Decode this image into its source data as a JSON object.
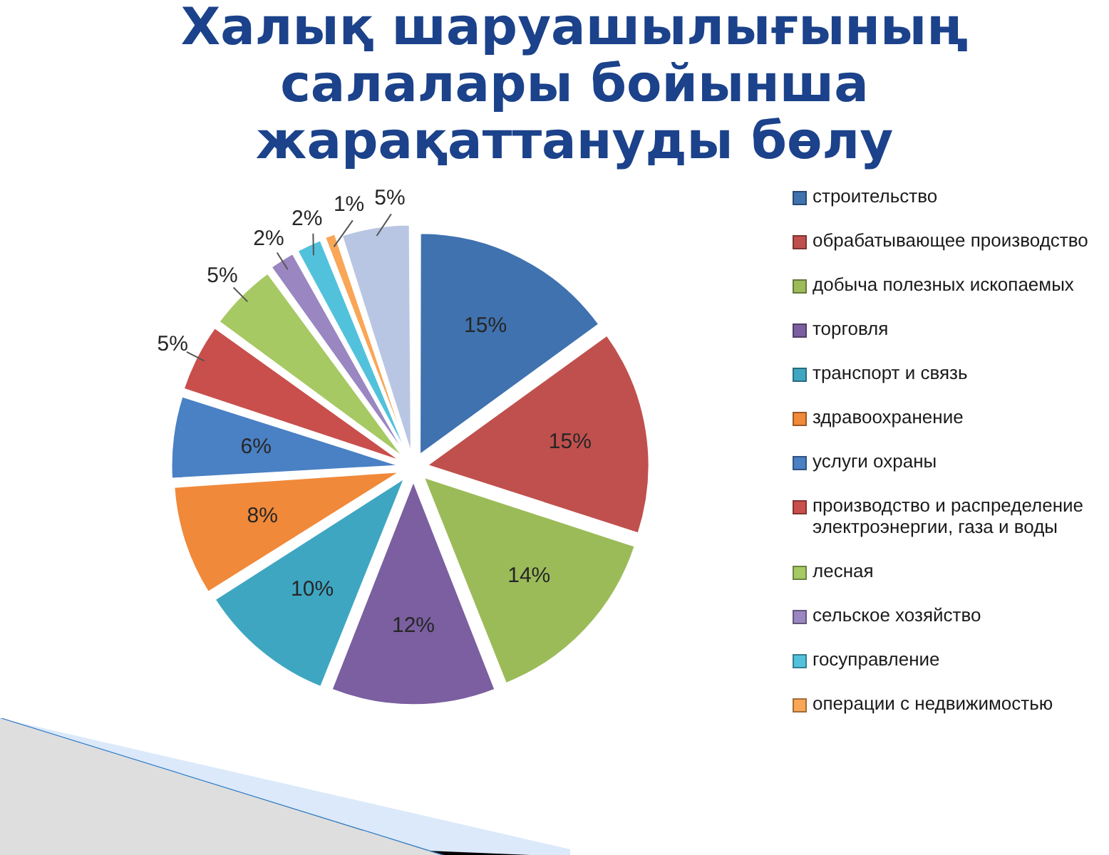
{
  "chart_data": {
    "type": "pie",
    "title": "Халық шаруашылығының салалары бойынша жарақаттануды бөлу",
    "categories": [
      "строительство",
      "обрабатывающее производство",
      "добыча полезных ископаемых",
      "торговля",
      "транспорт и связь",
      "здравоохранение",
      "услуги охраны",
      "производство и распределение электроэнергии, газа и воды",
      "лесная",
      "сельское хозяйство",
      "госуправление",
      "операции с недвижимостью",
      null
    ],
    "values": [
      15,
      15,
      14,
      12,
      10,
      8,
      6,
      5,
      5,
      2,
      2,
      1,
      5
    ],
    "colors": [
      "#3f72af",
      "#c0504d",
      "#9bbb59",
      "#7b5fa0",
      "#3fa6c2",
      "#f0893a",
      "#4a80c4",
      "#c94f4c",
      "#a6c964",
      "#9a86c0",
      "#52c2dc",
      "#f9a657",
      "#b9c6e3"
    ],
    "value_labels": [
      "15%",
      "15%",
      "14%",
      "12%",
      "10%",
      "8%",
      "6%",
      "5%",
      "5%",
      "2%",
      "2%",
      "1%",
      "5%"
    ],
    "legend": "right"
  }
}
